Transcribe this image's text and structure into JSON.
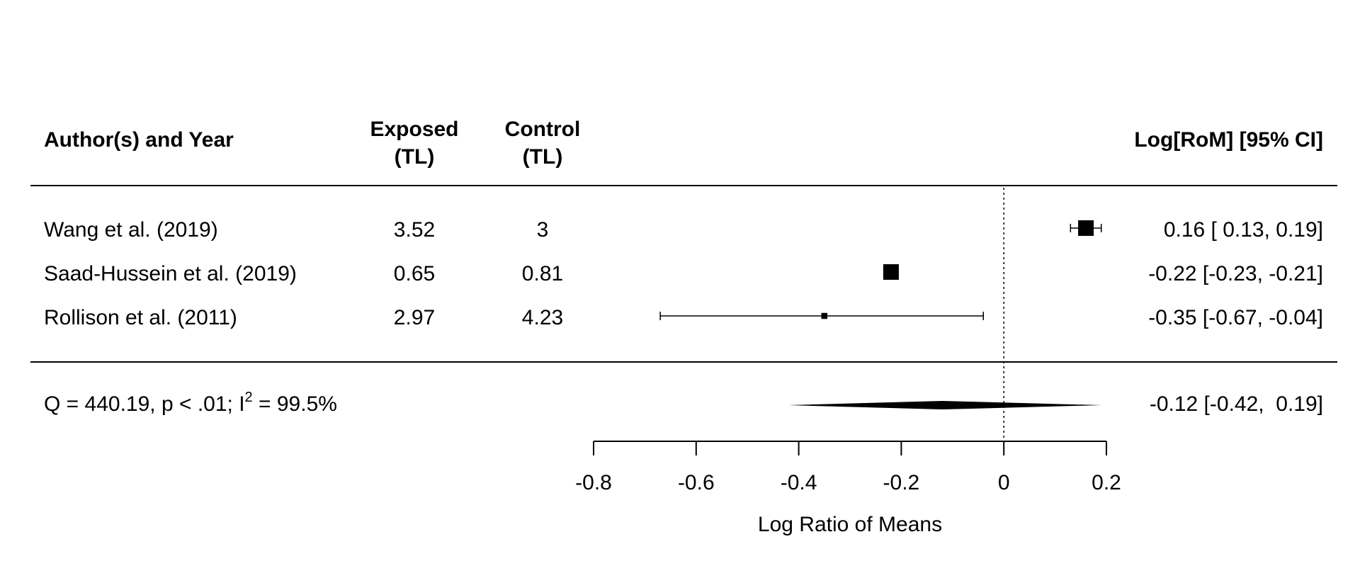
{
  "headers": {
    "study": "Author(s) and Year",
    "exposed_line1": "Exposed",
    "exposed_line2": "(TL)",
    "control_line1": "Control",
    "control_line2": "(TL)",
    "effect": "Log[RoM] [95% CI]"
  },
  "summary": {
    "heterogeneity_prefix": "Q = 440.19, p < .01; I",
    "heterogeneity_sup": "2",
    "heterogeneity_suffix": " = 99.5%"
  },
  "chart_data": {
    "type": "forest",
    "xlabel": "Log Ratio of Means",
    "xlim": [
      -0.8,
      0.2
    ],
    "ticks": [
      -0.8,
      -0.6,
      -0.4,
      -0.2,
      0,
      0.2
    ],
    "tick_labels": [
      "-0.8",
      "-0.6",
      "-0.4",
      "-0.2",
      "0",
      "0.2"
    ],
    "reference_line": 0,
    "studies": [
      {
        "name": "Wang et al. (2019)",
        "exposed": "3.52",
        "control": "3",
        "estimate": 0.16,
        "lower": 0.13,
        "upper": 0.19,
        "weight": 1.0,
        "ci_text": "0.16 [ 0.13,  0.19]"
      },
      {
        "name": "Saad-Hussein et al. (2019)",
        "exposed": "0.65",
        "control": "0.81",
        "estimate": -0.22,
        "lower": -0.23,
        "upper": -0.21,
        "weight": 1.0,
        "ci_text": "-0.22 [-0.23, -0.21]"
      },
      {
        "name": "Rollison et al. (2011)",
        "exposed": "2.97",
        "control": "4.23",
        "estimate": -0.35,
        "lower": -0.67,
        "upper": -0.04,
        "weight": 0.25,
        "ci_text": "-0.35 [-0.67, -0.04]"
      }
    ],
    "pooled": {
      "estimate": -0.12,
      "lower": -0.42,
      "upper": 0.19,
      "ci_text": "-0.12 [-0.42,  0.19]"
    }
  }
}
